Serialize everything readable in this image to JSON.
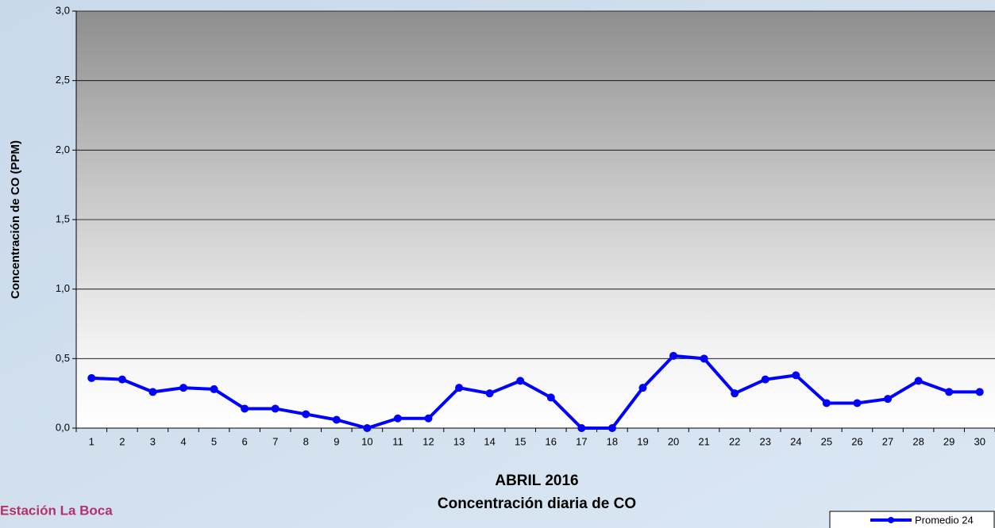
{
  "chart_data": {
    "type": "line",
    "title": "ABRIL 2016",
    "subtitle": "Concentración diaria de CO",
    "y_label": "Concentración de CO (PPM)",
    "annotation": "Estación La Boca",
    "categories": [
      "1",
      "2",
      "3",
      "4",
      "5",
      "6",
      "7",
      "8",
      "9",
      "10",
      "11",
      "12",
      "13",
      "14",
      "15",
      "16",
      "17",
      "18",
      "19",
      "20",
      "21",
      "22",
      "23",
      "24",
      "25",
      "26",
      "27",
      "28",
      "29",
      "30"
    ],
    "series": [
      {
        "name": "Promedio 24",
        "color": "#0000ff",
        "values": [
          0.36,
          0.35,
          0.26,
          0.29,
          0.28,
          0.14,
          0.14,
          0.1,
          0.06,
          0.0,
          0.07,
          0.07,
          0.29,
          0.25,
          0.34,
          0.22,
          0.0,
          0.0,
          0.29,
          0.52,
          0.5,
          0.25,
          0.35,
          0.38,
          0.18,
          0.18,
          0.21,
          0.34,
          0.26,
          0.26
        ]
      }
    ],
    "ylim": [
      0,
      3
    ],
    "yticks": [
      {
        "value": 0,
        "label": "0,0"
      },
      {
        "value": 0.5,
        "label": "0,5"
      },
      {
        "value": 1,
        "label": "1,0"
      },
      {
        "value": 1.5,
        "label": "1,5"
      },
      {
        "value": 2,
        "label": "2,0"
      },
      {
        "value": 2.5,
        "label": "2,5"
      },
      {
        "value": 3,
        "label": "3,0"
      }
    ],
    "grid": true
  }
}
